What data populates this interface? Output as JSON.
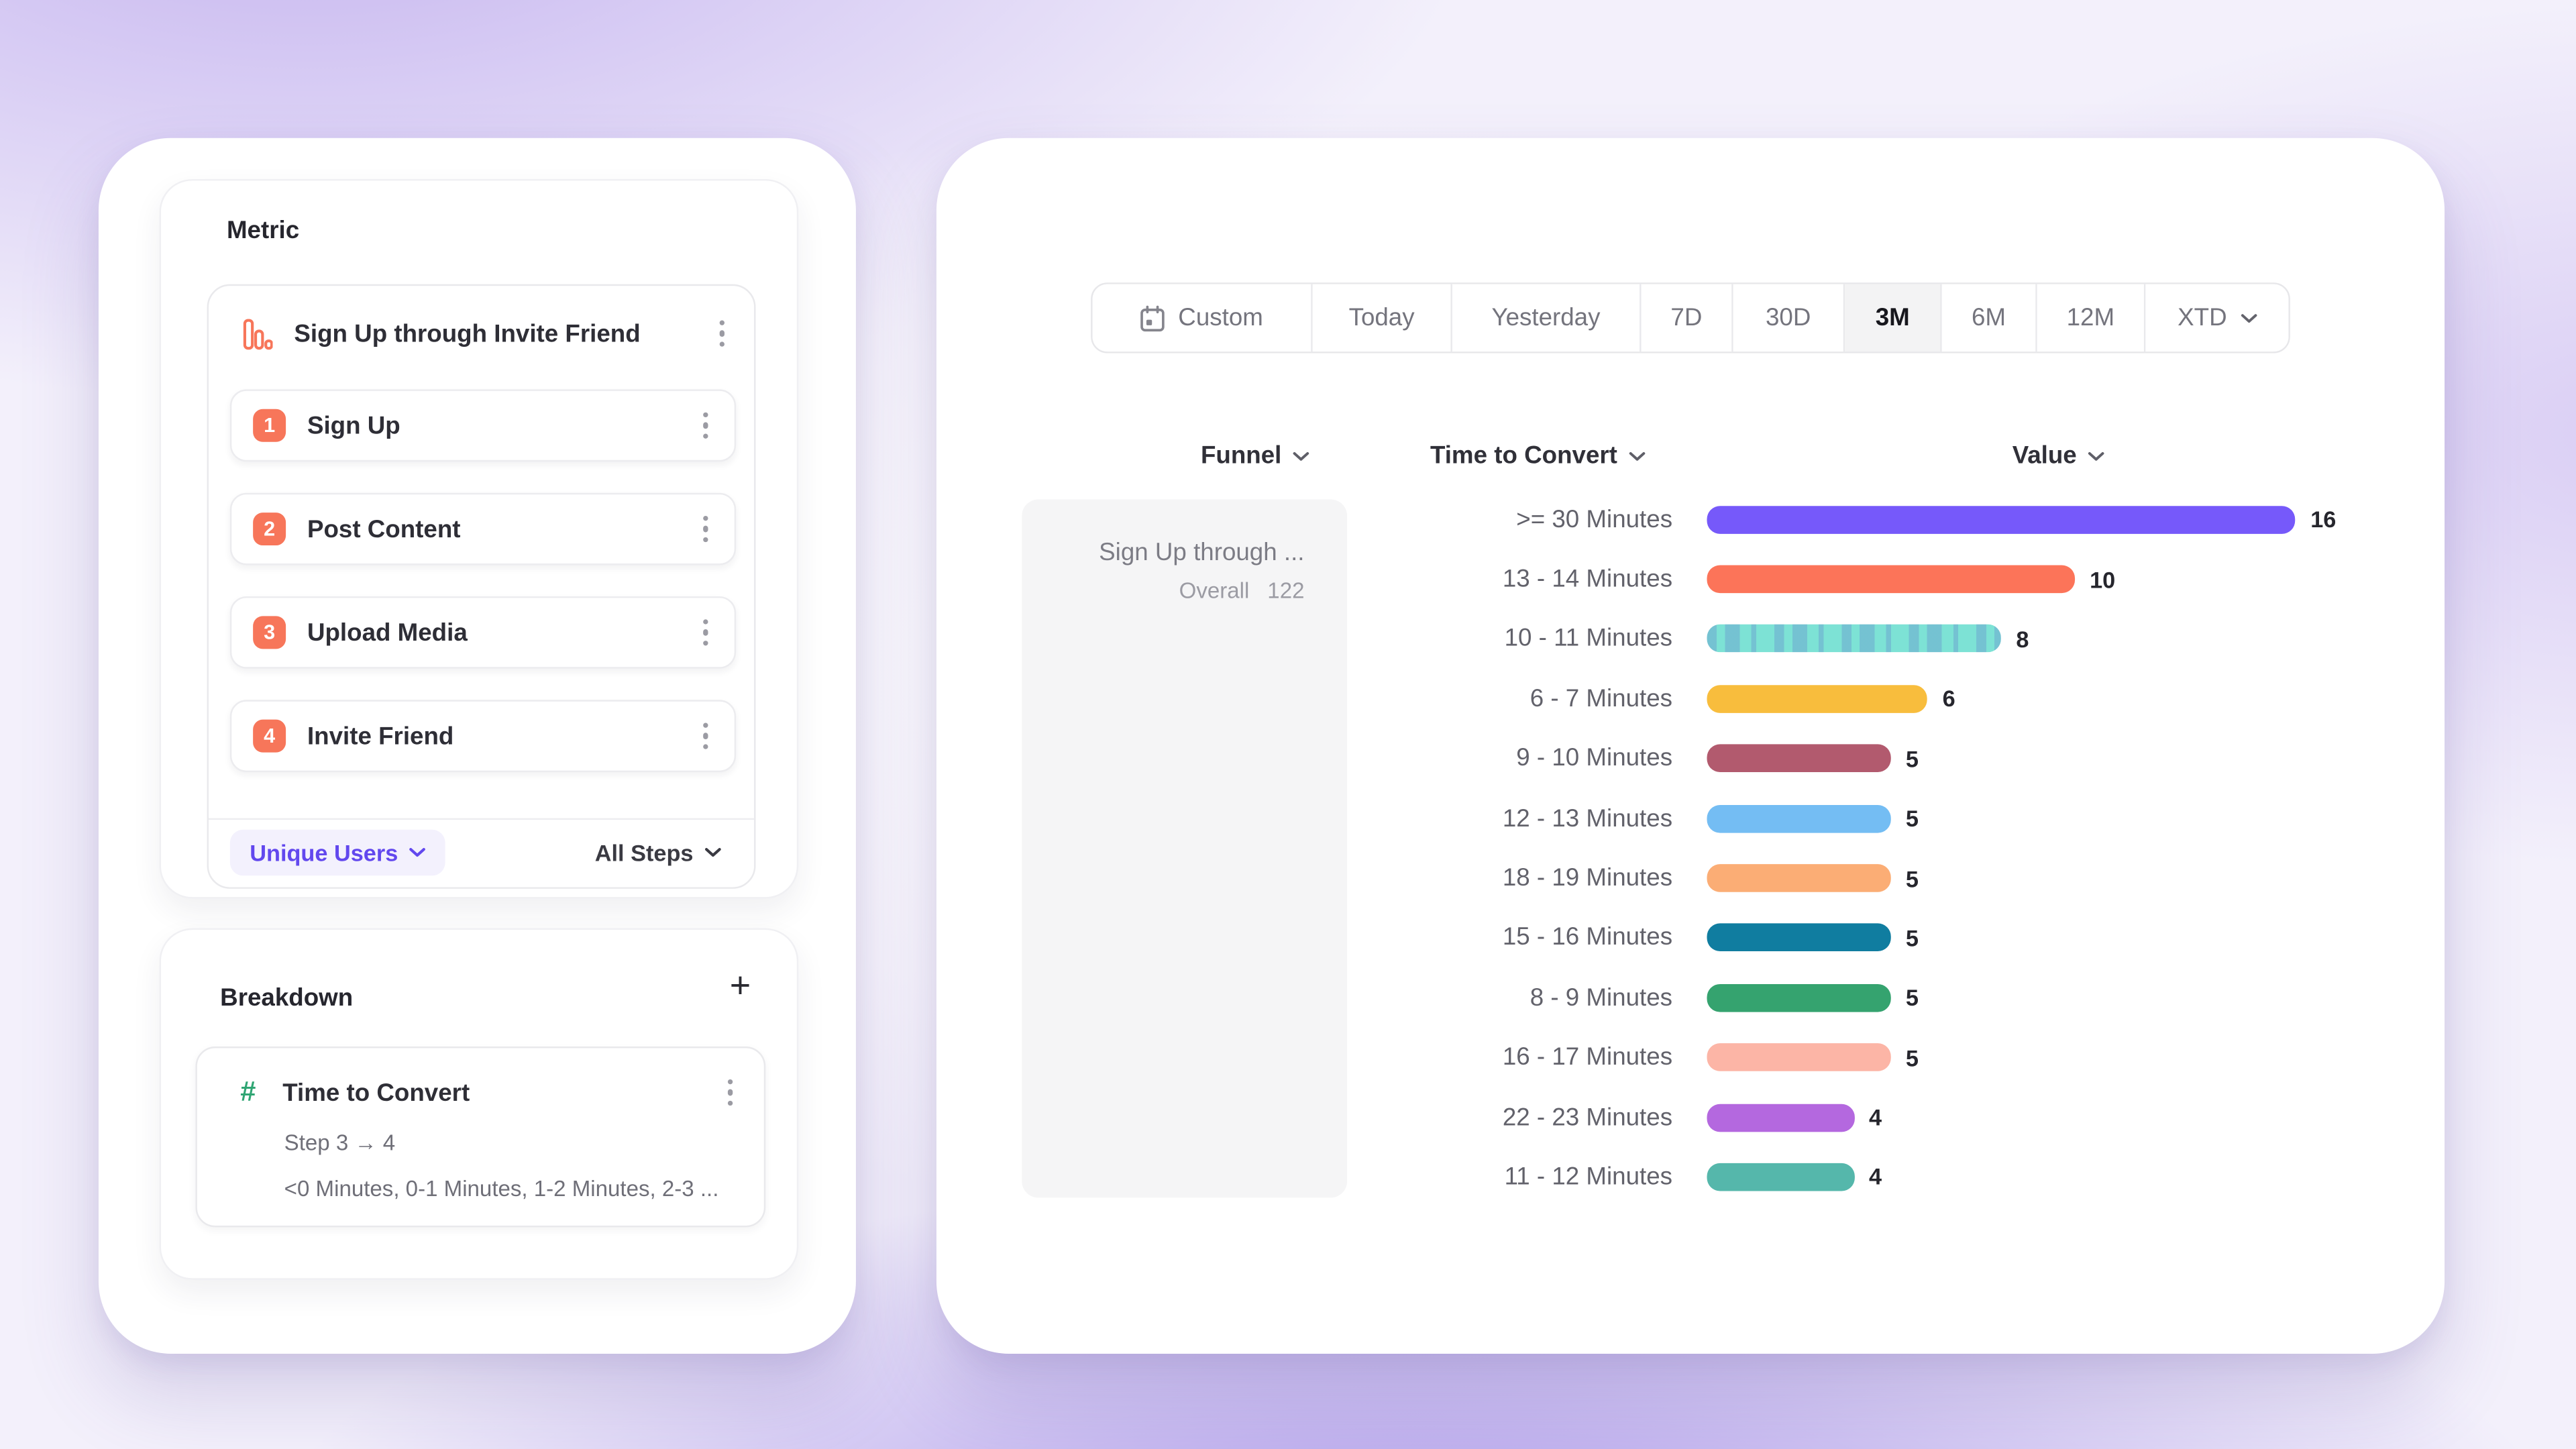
{
  "metric_panel": {
    "title": "Metric",
    "funnel": {
      "icon": "bar-chart-icon",
      "title": "Sign Up through Invite Friend",
      "steps": [
        {
          "number": "1",
          "label": "Sign Up"
        },
        {
          "number": "2",
          "label": "Post Content"
        },
        {
          "number": "3",
          "label": "Upload Media"
        },
        {
          "number": "4",
          "label": "Invite Friend"
        }
      ],
      "measurement": "Unique Users",
      "steps_filter": "All Steps"
    }
  },
  "breakdown_panel": {
    "title": "Breakdown",
    "add_label": "+",
    "property": {
      "icon": "hash-icon",
      "hash_glyph": "#",
      "name": "Time to Convert",
      "step_range": "Step 3 → 4",
      "buckets_preview": "<0 Minutes, 0-1 Minutes, 1-2 Minutes, 2-3 ..."
    }
  },
  "report_panel": {
    "date_ranges": [
      {
        "label": "Custom",
        "icon": "calendar-icon",
        "selected": false
      },
      {
        "label": "Today",
        "selected": false
      },
      {
        "label": "Yesterday",
        "selected": false
      },
      {
        "label": "7D",
        "selected": false
      },
      {
        "label": "30D",
        "selected": false
      },
      {
        "label": "3M",
        "selected": true
      },
      {
        "label": "6M",
        "selected": false
      },
      {
        "label": "12M",
        "selected": false
      },
      {
        "label": "XTD",
        "selected": false,
        "chevron": true
      }
    ],
    "columns": [
      {
        "label": "Funnel"
      },
      {
        "label": "Time to Convert"
      },
      {
        "label": "Value"
      }
    ],
    "funnel_cell": {
      "title": "Sign Up through ...",
      "overall_label": "Overall",
      "overall_value": "122"
    }
  },
  "chart_data": {
    "type": "bar",
    "orientation": "horizontal",
    "title": "",
    "xlabel": "Value",
    "ylabel": "Time to Convert",
    "xlim": [
      0,
      16
    ],
    "grid": false,
    "overall_total": 122,
    "categories": [
      ">= 30 Minutes",
      "13 - 14 Minutes",
      "10 - 11 Minutes",
      "6 - 7 Minutes",
      "9 - 10 Minutes",
      "12 - 13 Minutes",
      "18 - 19 Minutes",
      "15 - 16 Minutes",
      "8 - 9 Minutes",
      "16 - 17 Minutes",
      "22 - 23 Minutes",
      "11 - 12 Minutes"
    ],
    "values": [
      16,
      10,
      8,
      6,
      5,
      5,
      5,
      5,
      5,
      5,
      4,
      4
    ],
    "colors": [
      "#7659FA",
      "#FC7459",
      "#7DE2D5",
      "#F8BD3D",
      "#B25A6E",
      "#74BDF3",
      "#FBAD75",
      "#107DA0",
      "#35A36F",
      "#FCB5A6",
      "#B468DF",
      "#55B7AB"
    ],
    "patterns": [
      "solid",
      "solid",
      "dotted",
      "solid",
      "solid",
      "solid",
      "solid",
      "solid",
      "solid",
      "solid",
      "solid",
      "solid"
    ]
  }
}
